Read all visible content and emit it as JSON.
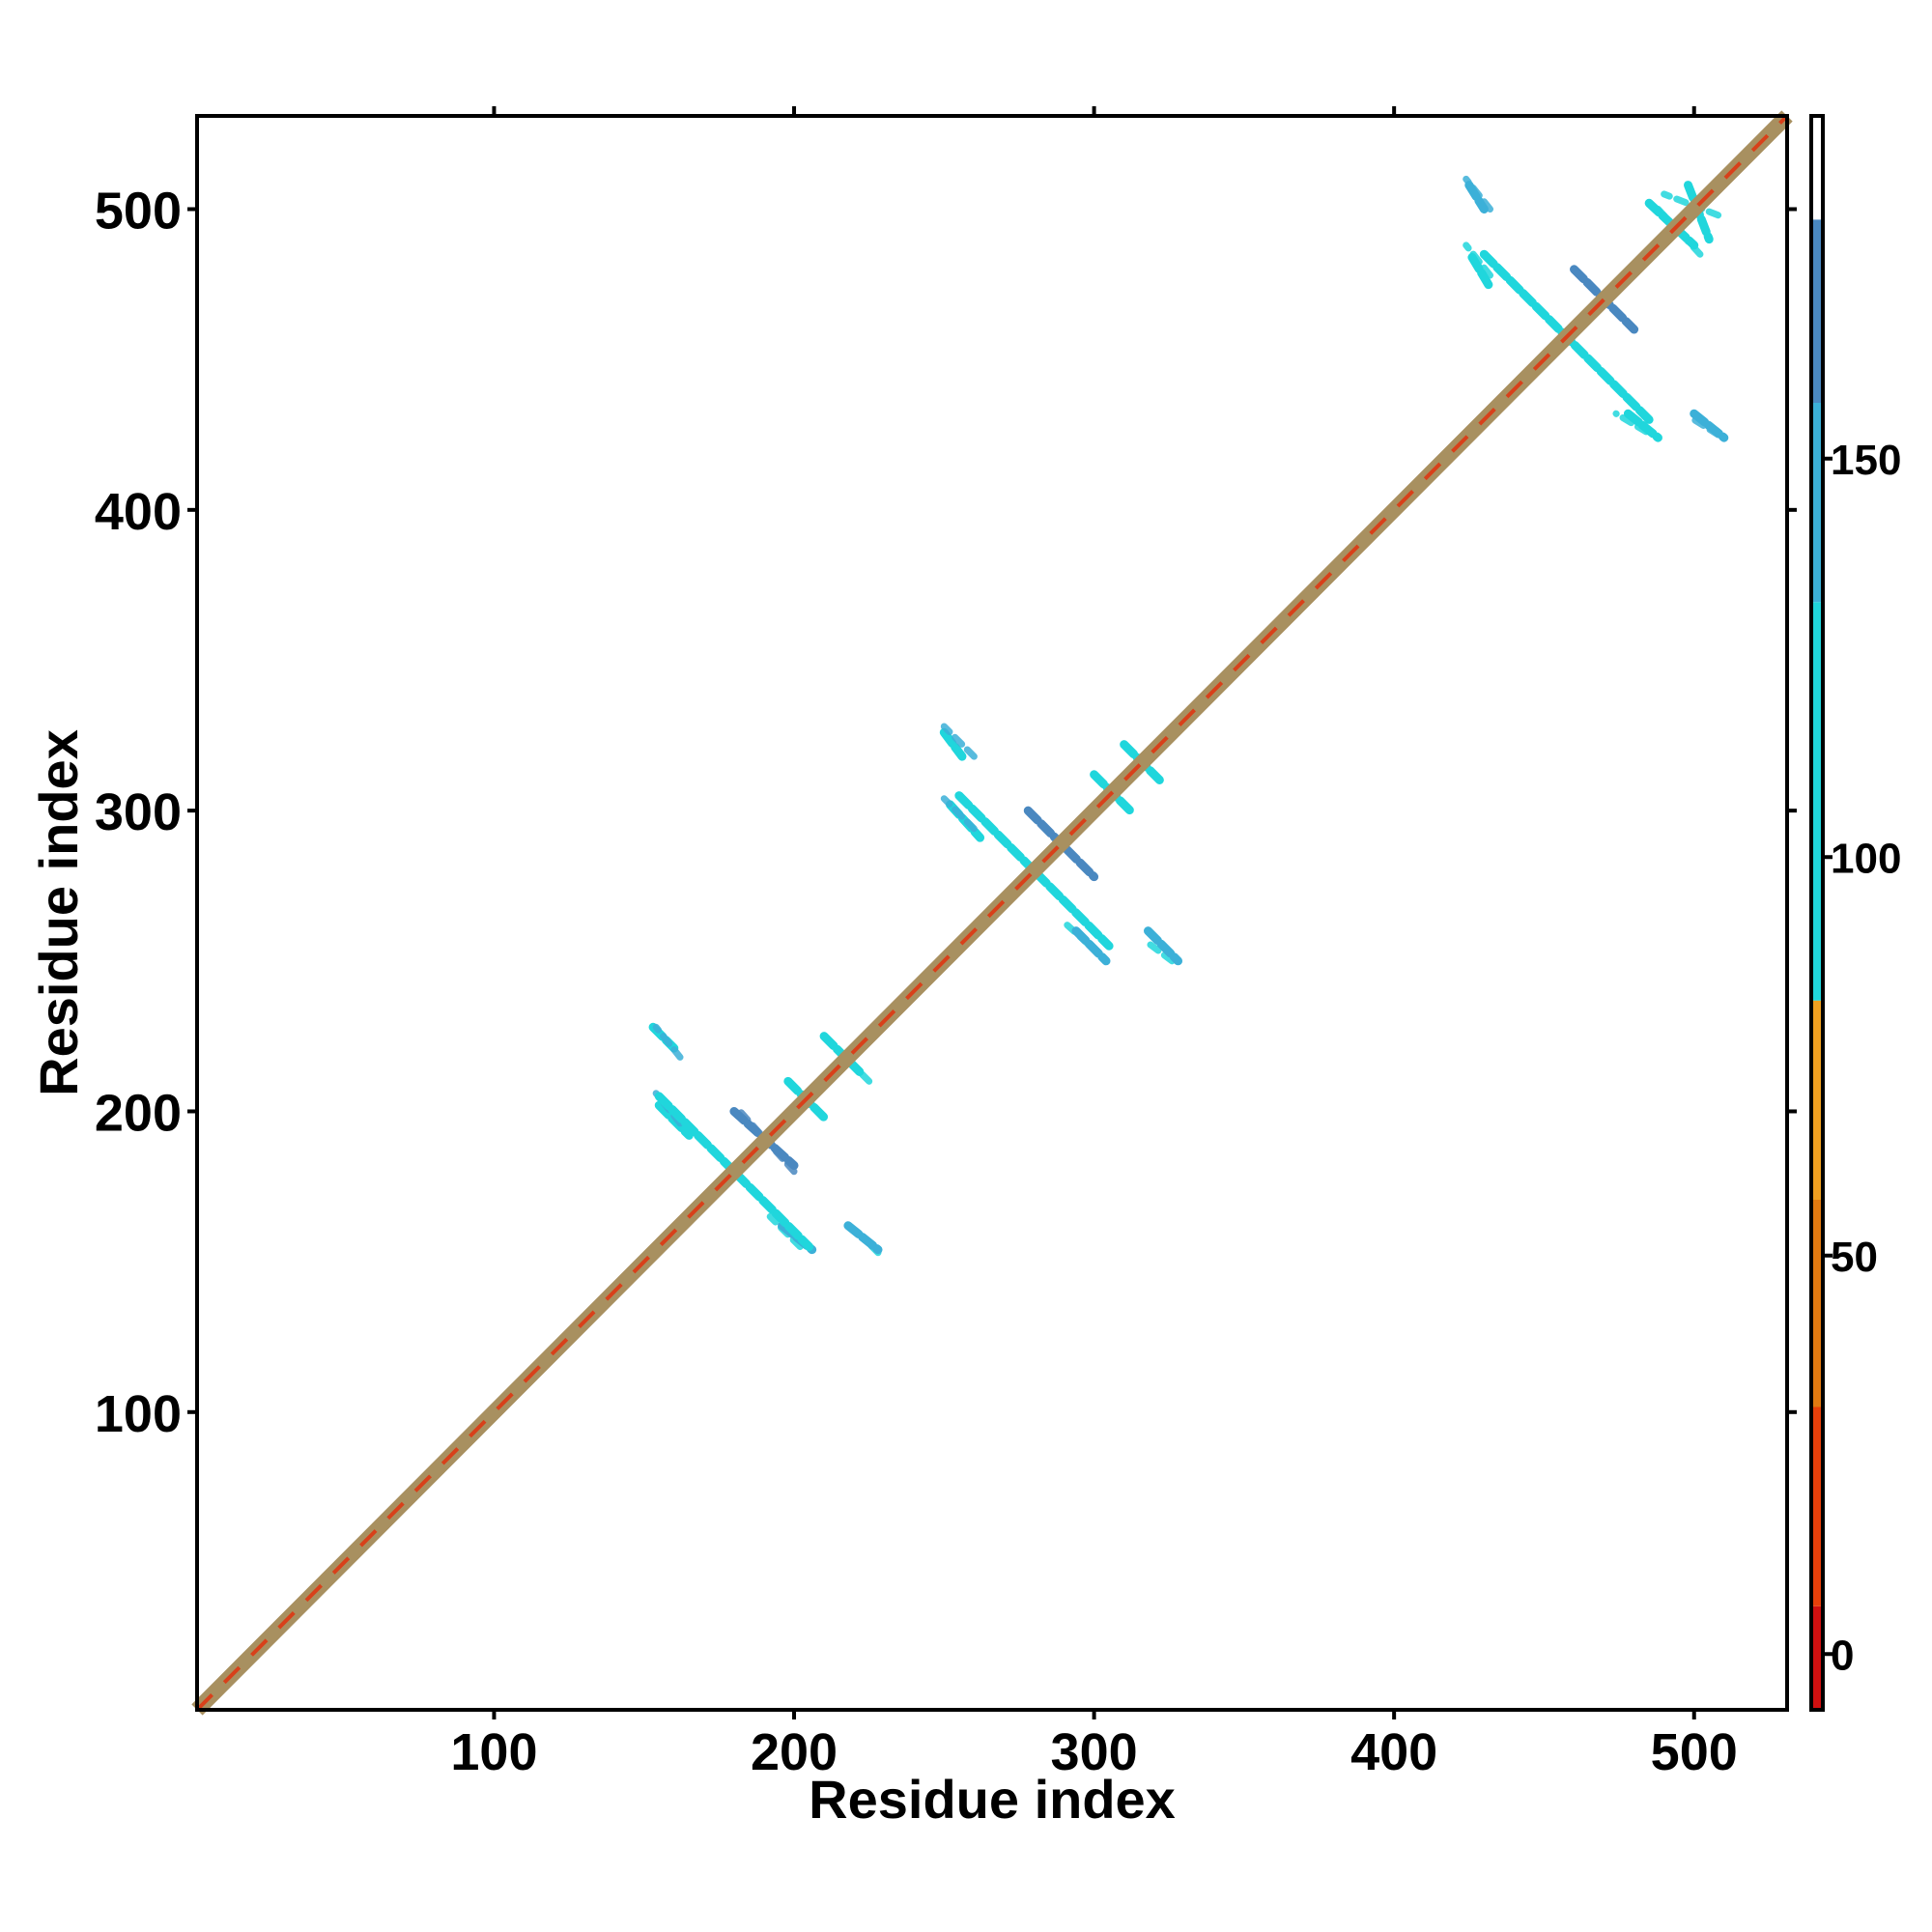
{
  "chart_data": {
    "type": "heatmap",
    "title": "",
    "xlabel": "Residue index",
    "ylabel": "Residue index",
    "xlim": [
      1,
      531
    ],
    "ylim": [
      1,
      531
    ],
    "xticks": [
      100,
      200,
      300,
      400,
      500
    ],
    "yticks": [
      100,
      200,
      300,
      400,
      500
    ],
    "colorbar": {
      "ticks": [
        0,
        50,
        100,
        150
      ],
      "range": [
        -7,
        193
      ],
      "bands": [
        {
          "from": -7,
          "to": 6,
          "color": "#d01010"
        },
        {
          "from": 6,
          "to": 31,
          "color": "#e8400a"
        },
        {
          "from": 31,
          "to": 57,
          "color": "#e27a10"
        },
        {
          "from": 57,
          "to": 82,
          "color": "#f0a020"
        },
        {
          "from": 82,
          "to": 132,
          "color": "#20d6dc"
        },
        {
          "from": 132,
          "to": 157,
          "color": "#3cb0d8"
        },
        {
          "from": 157,
          "to": 180,
          "color": "#4a88c0"
        },
        {
          "from": 180,
          "to": 193,
          "color": "#ffffff"
        }
      ]
    },
    "diagonal": {
      "from": 1,
      "to": 531,
      "color": "#a89060",
      "accent_color": "#d8401a",
      "value": 40
    },
    "contact_segments": [
      {
        "x": [
          153,
          160
        ],
        "y": [
          228,
          221
        ],
        "value": 125
      },
      {
        "x": [
          155,
          165
        ],
        "y": [
          202,
          192
        ],
        "value": 130
      },
      {
        "x": [
          180,
          200
        ],
        "y": [
          200,
          182
        ],
        "value": 160
      },
      {
        "x": [
          198,
          210
        ],
        "y": [
          210,
          198
        ],
        "value": 120
      },
      {
        "x": [
          210,
          222
        ],
        "y": [
          225,
          213
        ],
        "value": 110
      },
      {
        "x": [
          196,
          206
        ],
        "y": [
          162,
          154
        ],
        "value": 135
      },
      {
        "x": [
          218,
          228
        ],
        "y": [
          162,
          154
        ],
        "value": 150
      },
      {
        "x": [
          155,
          205
        ],
        "y": [
          205,
          155
        ],
        "value": 100
      },
      {
        "x": [
          250,
          256
        ],
        "y": [
          326,
          318
        ],
        "value": 130
      },
      {
        "x": [
          252,
          262
        ],
        "y": [
          302,
          291
        ],
        "value": 130
      },
      {
        "x": [
          278,
          300
        ],
        "y": [
          300,
          278
        ],
        "value": 160
      },
      {
        "x": [
          300,
          312
        ],
        "y": [
          312,
          300
        ],
        "value": 115
      },
      {
        "x": [
          310,
          322
        ],
        "y": [
          322,
          310
        ],
        "value": 110
      },
      {
        "x": [
          294,
          304
        ],
        "y": [
          260,
          250
        ],
        "value": 135
      },
      {
        "x": [
          318,
          328
        ],
        "y": [
          260,
          250
        ],
        "value": 150
      },
      {
        "x": [
          255,
          305
        ],
        "y": [
          305,
          255
        ],
        "value": 100
      },
      {
        "x": [
          425,
          430
        ],
        "y": [
          508,
          500
        ],
        "value": 150
      },
      {
        "x": [
          426,
          432
        ],
        "y": [
          484,
          474
        ],
        "value": 130
      },
      {
        "x": [
          460,
          480
        ],
        "y": [
          480,
          460
        ],
        "value": 165
      },
      {
        "x": [
          485,
          500
        ],
        "y": [
          502,
          488
        ],
        "value": 110
      },
      {
        "x": [
          498,
          505
        ],
        "y": [
          508,
          490
        ],
        "value": 110
      },
      {
        "x": [
          478,
          488
        ],
        "y": [
          432,
          424
        ],
        "value": 130
      },
      {
        "x": [
          500,
          510
        ],
        "y": [
          432,
          424
        ],
        "value": 150
      },
      {
        "x": [
          430,
          485
        ],
        "y": [
          485,
          430
        ],
        "value": 100
      }
    ]
  }
}
